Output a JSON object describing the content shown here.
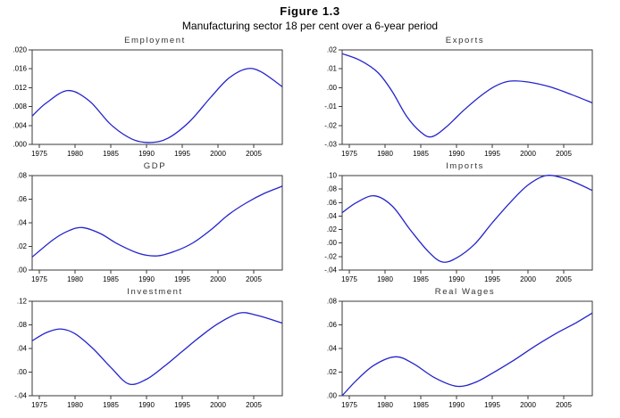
{
  "figure": {
    "title": "Figure 1.3",
    "subtitle": "Manufacturing sector 18 per cent over a 6-year period"
  },
  "axis": {
    "x_min": 1974,
    "x_max": 2009,
    "x_ticks": [
      "1975",
      "1980",
      "1985",
      "1990",
      "1995",
      "2000",
      "2005"
    ]
  },
  "style": {
    "line_color": "#2323cc",
    "frame_color": "#3a3a3a",
    "text_color": "#000000"
  },
  "chart_data": [
    {
      "type": "line",
      "title": "Employment",
      "ylim": [
        0.0,
        0.02
      ],
      "yticks": [
        0.0,
        0.004,
        0.008,
        0.012,
        0.016,
        0.02
      ],
      "ytick_labels": [
        ".000",
        ".004",
        ".008",
        ".012",
        ".016",
        ".020"
      ],
      "x": [
        1974,
        1976,
        1979,
        1982,
        1985,
        1988,
        1990.5,
        1993,
        1996,
        1999,
        2001.5,
        2004,
        2006,
        2009
      ],
      "values": [
        0.006,
        0.0088,
        0.0114,
        0.0092,
        0.0042,
        0.0011,
        0.0004,
        0.0013,
        0.0048,
        0.01,
        0.014,
        0.016,
        0.0154,
        0.0122
      ]
    },
    {
      "type": "line",
      "title": "Exports",
      "ylim": [
        -0.03,
        0.02
      ],
      "yticks": [
        -0.03,
        -0.02,
        -0.01,
        0.0,
        0.01,
        0.02
      ],
      "ytick_labels": [
        "-.03",
        "-.02",
        "-.01",
        ".00",
        ".01",
        ".02"
      ],
      "x": [
        1974,
        1976.5,
        1979,
        1981,
        1983,
        1985,
        1986.5,
        1988.5,
        1991,
        1993.5,
        1995.5,
        1997.5,
        2000,
        2003,
        2006,
        2009
      ],
      "values": [
        0.018,
        0.0145,
        0.008,
        -0.002,
        -0.015,
        -0.0235,
        -0.026,
        -0.021,
        -0.012,
        -0.004,
        0.001,
        0.0035,
        0.003,
        0.0005,
        -0.0035,
        -0.008
      ]
    },
    {
      "type": "line",
      "title": "GDP",
      "ylim": [
        0.0,
        0.08
      ],
      "yticks": [
        0.0,
        0.02,
        0.04,
        0.06,
        0.08
      ],
      "ytick_labels": [
        ".00",
        ".02",
        ".04",
        ".06",
        ".08"
      ],
      "x": [
        1974,
        1977,
        1979,
        1981,
        1983.5,
        1986,
        1989,
        1991.5,
        1994,
        1996.5,
        1999,
        2001.5,
        2004,
        2006.5,
        2009
      ],
      "values": [
        0.011,
        0.026,
        0.033,
        0.036,
        0.031,
        0.022,
        0.014,
        0.012,
        0.016,
        0.023,
        0.034,
        0.047,
        0.057,
        0.065,
        0.071
      ]
    },
    {
      "type": "line",
      "title": "Imports",
      "ylim": [
        -0.04,
        0.1
      ],
      "yticks": [
        -0.04,
        -0.02,
        0.0,
        0.02,
        0.04,
        0.06,
        0.08,
        0.1
      ],
      "ytick_labels": [
        "-.04",
        "-.02",
        ".00",
        ".02",
        ".04",
        ".06",
        ".08",
        ".10"
      ],
      "x": [
        1974,
        1976,
        1978.5,
        1981,
        1983.5,
        1986,
        1988,
        1990,
        1992.5,
        1995,
        1997.5,
        2000,
        2002.5,
        2005,
        2007,
        2009
      ],
      "values": [
        0.045,
        0.06,
        0.07,
        0.055,
        0.02,
        -0.012,
        -0.028,
        -0.022,
        -0.002,
        0.03,
        0.06,
        0.086,
        0.1,
        0.096,
        0.088,
        0.078
      ]
    },
    {
      "type": "line",
      "title": "Investment",
      "ylim": [
        -0.04,
        0.12
      ],
      "yticks": [
        -0.04,
        0.0,
        0.04,
        0.08,
        0.12
      ],
      "ytick_labels": [
        "-.04",
        ".00",
        ".04",
        ".08",
        ".12"
      ],
      "x": [
        1974,
        1976,
        1978,
        1980,
        1982.5,
        1985,
        1987.5,
        1990,
        1992.5,
        1995,
        1997.5,
        2000,
        2003,
        2005.5,
        2009
      ],
      "values": [
        0.053,
        0.067,
        0.073,
        0.065,
        0.04,
        0.008,
        -0.02,
        -0.012,
        0.01,
        0.035,
        0.06,
        0.082,
        0.1,
        0.096,
        0.083
      ]
    },
    {
      "type": "line",
      "title": "Real Wages",
      "ylim": [
        0.0,
        0.08
      ],
      "yticks": [
        0.0,
        0.02,
        0.04,
        0.06,
        0.08
      ],
      "ytick_labels": [
        ".00",
        ".02",
        ".04",
        ".06",
        ".08"
      ],
      "x": [
        1974,
        1976,
        1978.5,
        1981.5,
        1984,
        1987,
        1990,
        1992.5,
        1995,
        1998,
        2001,
        2004,
        2006.5,
        2009
      ],
      "values": [
        0.0,
        0.013,
        0.026,
        0.033,
        0.027,
        0.015,
        0.008,
        0.011,
        0.019,
        0.03,
        0.042,
        0.053,
        0.061,
        0.07
      ]
    }
  ]
}
